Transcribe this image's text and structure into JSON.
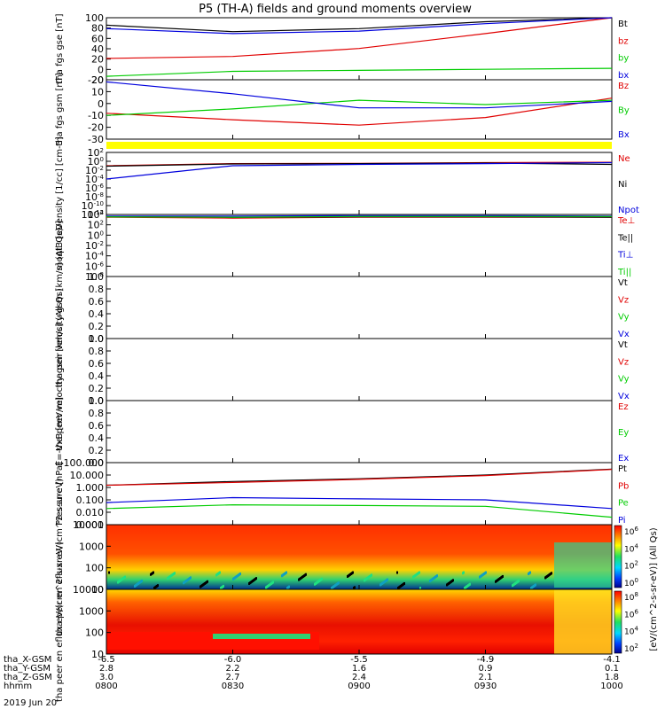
{
  "title": "P5 (TH-A) fields and ground moments overview",
  "date": "2019 Jun 20",
  "colors": {
    "black": "#000000",
    "red": "#e00000",
    "green": "#00cc00",
    "blue": "#0000dd",
    "yellow": "#ffff00"
  },
  "x_axis": {
    "rows": [
      {
        "label": "tha_X-GSM",
        "values": [
          "-6.5",
          "-6.0",
          "-5.5",
          "-4.9",
          "-4.1"
        ]
      },
      {
        "label": "tha_Y-GSM",
        "values": [
          "2.8",
          "2.2",
          "1.6",
          "0.9",
          "0.1"
        ]
      },
      {
        "label": "tha_Z-GSM",
        "values": [
          "3.0",
          "2.7",
          "2.4",
          "2.1",
          "1.8"
        ]
      },
      {
        "label": "hhmm",
        "values": [
          "0800",
          "0830",
          "0900",
          "0930",
          "1000"
        ]
      }
    ]
  },
  "colorbar": {
    "label": "[eV/(cm^2-s-sr-eV)] (All Qs)",
    "ticks_top": [
      "10^6",
      "10^4",
      "10^2",
      "10^0"
    ],
    "ticks_bottom": [
      "10^8",
      "10^6",
      "10^4",
      "10^2"
    ]
  },
  "chart_data": [
    {
      "type": "line",
      "ylabel": "tha fgs gse [nT]",
      "yticks": [
        "100",
        "80",
        "60",
        "40",
        "20",
        "0",
        "-20"
      ],
      "ylim": [
        -25,
        100
      ],
      "x": [
        "08:00",
        "08:30",
        "09:00",
        "09:30",
        "10:00"
      ],
      "series": [
        {
          "name": "Bt",
          "color": "#000000",
          "values": [
            85,
            72,
            78,
            92,
            108
          ]
        },
        {
          "name": "bz",
          "color": "#e00000",
          "values": [
            18,
            22,
            38,
            68,
            110
          ]
        },
        {
          "name": "by",
          "color": "#00cc00",
          "values": [
            -18,
            -8,
            -6,
            -4,
            -2
          ]
        },
        {
          "name": "bx",
          "color": "#0000dd",
          "values": [
            78,
            68,
            73,
            88,
            104
          ]
        }
      ]
    },
    {
      "type": "line",
      "ylabel": "tha fgs gsm [nT]",
      "yticks": [
        "20",
        "10",
        "0",
        "-10",
        "-20",
        "-30"
      ],
      "ylim": [
        -35,
        20
      ],
      "x": [
        "08:00",
        "08:30",
        "09:00",
        "09:30",
        "10:00"
      ],
      "series": [
        {
          "name": "Bz",
          "color": "#e00000",
          "values": [
            -11,
            -17,
            -22,
            -15,
            3
          ]
        },
        {
          "name": "By",
          "color": "#00cc00",
          "values": [
            -13,
            -7,
            1,
            -3,
            1
          ]
        },
        {
          "name": "Bx",
          "color": "#0000dd",
          "values": [
            18,
            7,
            -6,
            -6,
            0
          ]
        }
      ]
    },
    {
      "type": "line",
      "ylabel": "Density [1/cc] [cm-3]",
      "yticks": [
        "10^2",
        "10^0",
        "10^-2",
        "10^-4",
        "10^-6",
        "10^-8",
        "10^-10",
        "10^-12"
      ],
      "ylim": [
        -12,
        2
      ],
      "scale": "log",
      "x": [
        "08:00",
        "08:30",
        "09:00",
        "09:30",
        "10:00"
      ],
      "series": [
        {
          "name": "Ne",
          "color": "#e00000",
          "values": [
            0.1,
            0.3,
            0.35,
            0.5,
            0.6
          ]
        },
        {
          "name": "Ni",
          "color": "#000000",
          "values": [
            0.08,
            0.25,
            0.3,
            0.4,
            0.2
          ]
        },
        {
          "name": "Npot",
          "color": "#0000dd",
          "values": [
            0.0001,
            0.1,
            0.2,
            0.3,
            0.5
          ]
        }
      ]
    },
    {
      "type": "line",
      "ylabel": "moqt3 [eV]",
      "yticks": [
        "10^4",
        "10^2",
        "10^0",
        "10^-2",
        "10^-4",
        "10^-6",
        "10^-8"
      ],
      "ylim": [
        -8,
        4
      ],
      "scale": "log",
      "x": [
        "08:00",
        "08:30",
        "09:00",
        "09:30",
        "10:00"
      ],
      "series": [
        {
          "name": "Te⊥",
          "color": "#e00000",
          "values": [
            3000,
            2000,
            3000,
            3000,
            3000
          ]
        },
        {
          "name": "Te||",
          "color": "#000000",
          "values": [
            4000,
            3000,
            3500,
            3500,
            3000
          ]
        },
        {
          "name": "Ti⊥",
          "color": "#0000dd",
          "values": [
            5000,
            5000,
            6000,
            6000,
            5000
          ]
        },
        {
          "name": "Ti||",
          "color": "#00cc00",
          "values": [
            3500,
            3000,
            4000,
            4000,
            4000
          ]
        }
      ]
    },
    {
      "type": "line",
      "ylabel": "tha peir velocity gsm [km/s] (All Qs)",
      "yticks": [
        "1.0",
        "0.8",
        "0.6",
        "0.4",
        "0.2",
        "0.0"
      ],
      "ylim": [
        0,
        1
      ],
      "series": [
        {
          "name": "Vt",
          "color": "#000000"
        },
        {
          "name": "Vz",
          "color": "#e00000"
        },
        {
          "name": "Vy",
          "color": "#00cc00"
        },
        {
          "name": "Vx",
          "color": "#0000dd"
        }
      ]
    },
    {
      "type": "line",
      "ylabel": "tha peer velocity gsm [km/s] (All Qs)",
      "yticks": [
        "1.0",
        "0.8",
        "0.6",
        "0.4",
        "0.2",
        "0.0"
      ],
      "ylim": [
        0,
        1
      ],
      "series": [
        {
          "name": "Vt",
          "color": "#000000"
        },
        {
          "name": "Vz",
          "color": "#e00000"
        },
        {
          "name": "Vy",
          "color": "#00cc00"
        },
        {
          "name": "Vx",
          "color": "#0000dd"
        }
      ]
    },
    {
      "type": "line",
      "ylabel": "E=-VxB [mV/m]",
      "yticks": [
        "1.0",
        "0.8",
        "0.6",
        "0.4",
        "0.2",
        "0.0"
      ],
      "ylim": [
        0,
        1
      ],
      "series": [
        {
          "name": "Ez",
          "color": "#e00000"
        },
        {
          "name": "Ey",
          "color": "#00cc00"
        },
        {
          "name": "Ex",
          "color": "#0000dd"
        }
      ]
    },
    {
      "type": "line",
      "ylabel": "Pressure [nPa]",
      "yticks": [
        "100.000",
        "10.000",
        "1.000",
        "0.100",
        "0.010",
        "0.001"
      ],
      "ylim": [
        -3,
        2
      ],
      "scale": "log",
      "x": [
        "08:00",
        "08:30",
        "09:00",
        "09:30",
        "10:00"
      ],
      "series": [
        {
          "name": "Pt",
          "color": "#000000",
          "values": [
            1.5,
            3,
            5,
            10,
            30
          ]
        },
        {
          "name": "Pb",
          "color": "#e00000",
          "values": [
            1.5,
            2.5,
            4.5,
            9,
            28
          ]
        },
        {
          "name": "Pe",
          "color": "#00cc00",
          "values": [
            0.02,
            0.04,
            0.035,
            0.03,
            0.004
          ]
        },
        {
          "name": "Pi",
          "color": "#0000dd",
          "values": [
            0.06,
            0.15,
            0.12,
            0.1,
            0.02
          ]
        }
      ]
    },
    {
      "type": "heatmap",
      "ylabel": "tha peir en eflux eV/(cm^2-s-sr-eV)",
      "yticks": [
        "10000",
        "1000",
        "100",
        "10"
      ]
    },
    {
      "type": "heatmap",
      "ylabel": "tha peer en eflux eV/(cm^2-s-sr-eV)",
      "yticks": [
        "10000",
        "1000",
        "100",
        "10"
      ]
    }
  ]
}
